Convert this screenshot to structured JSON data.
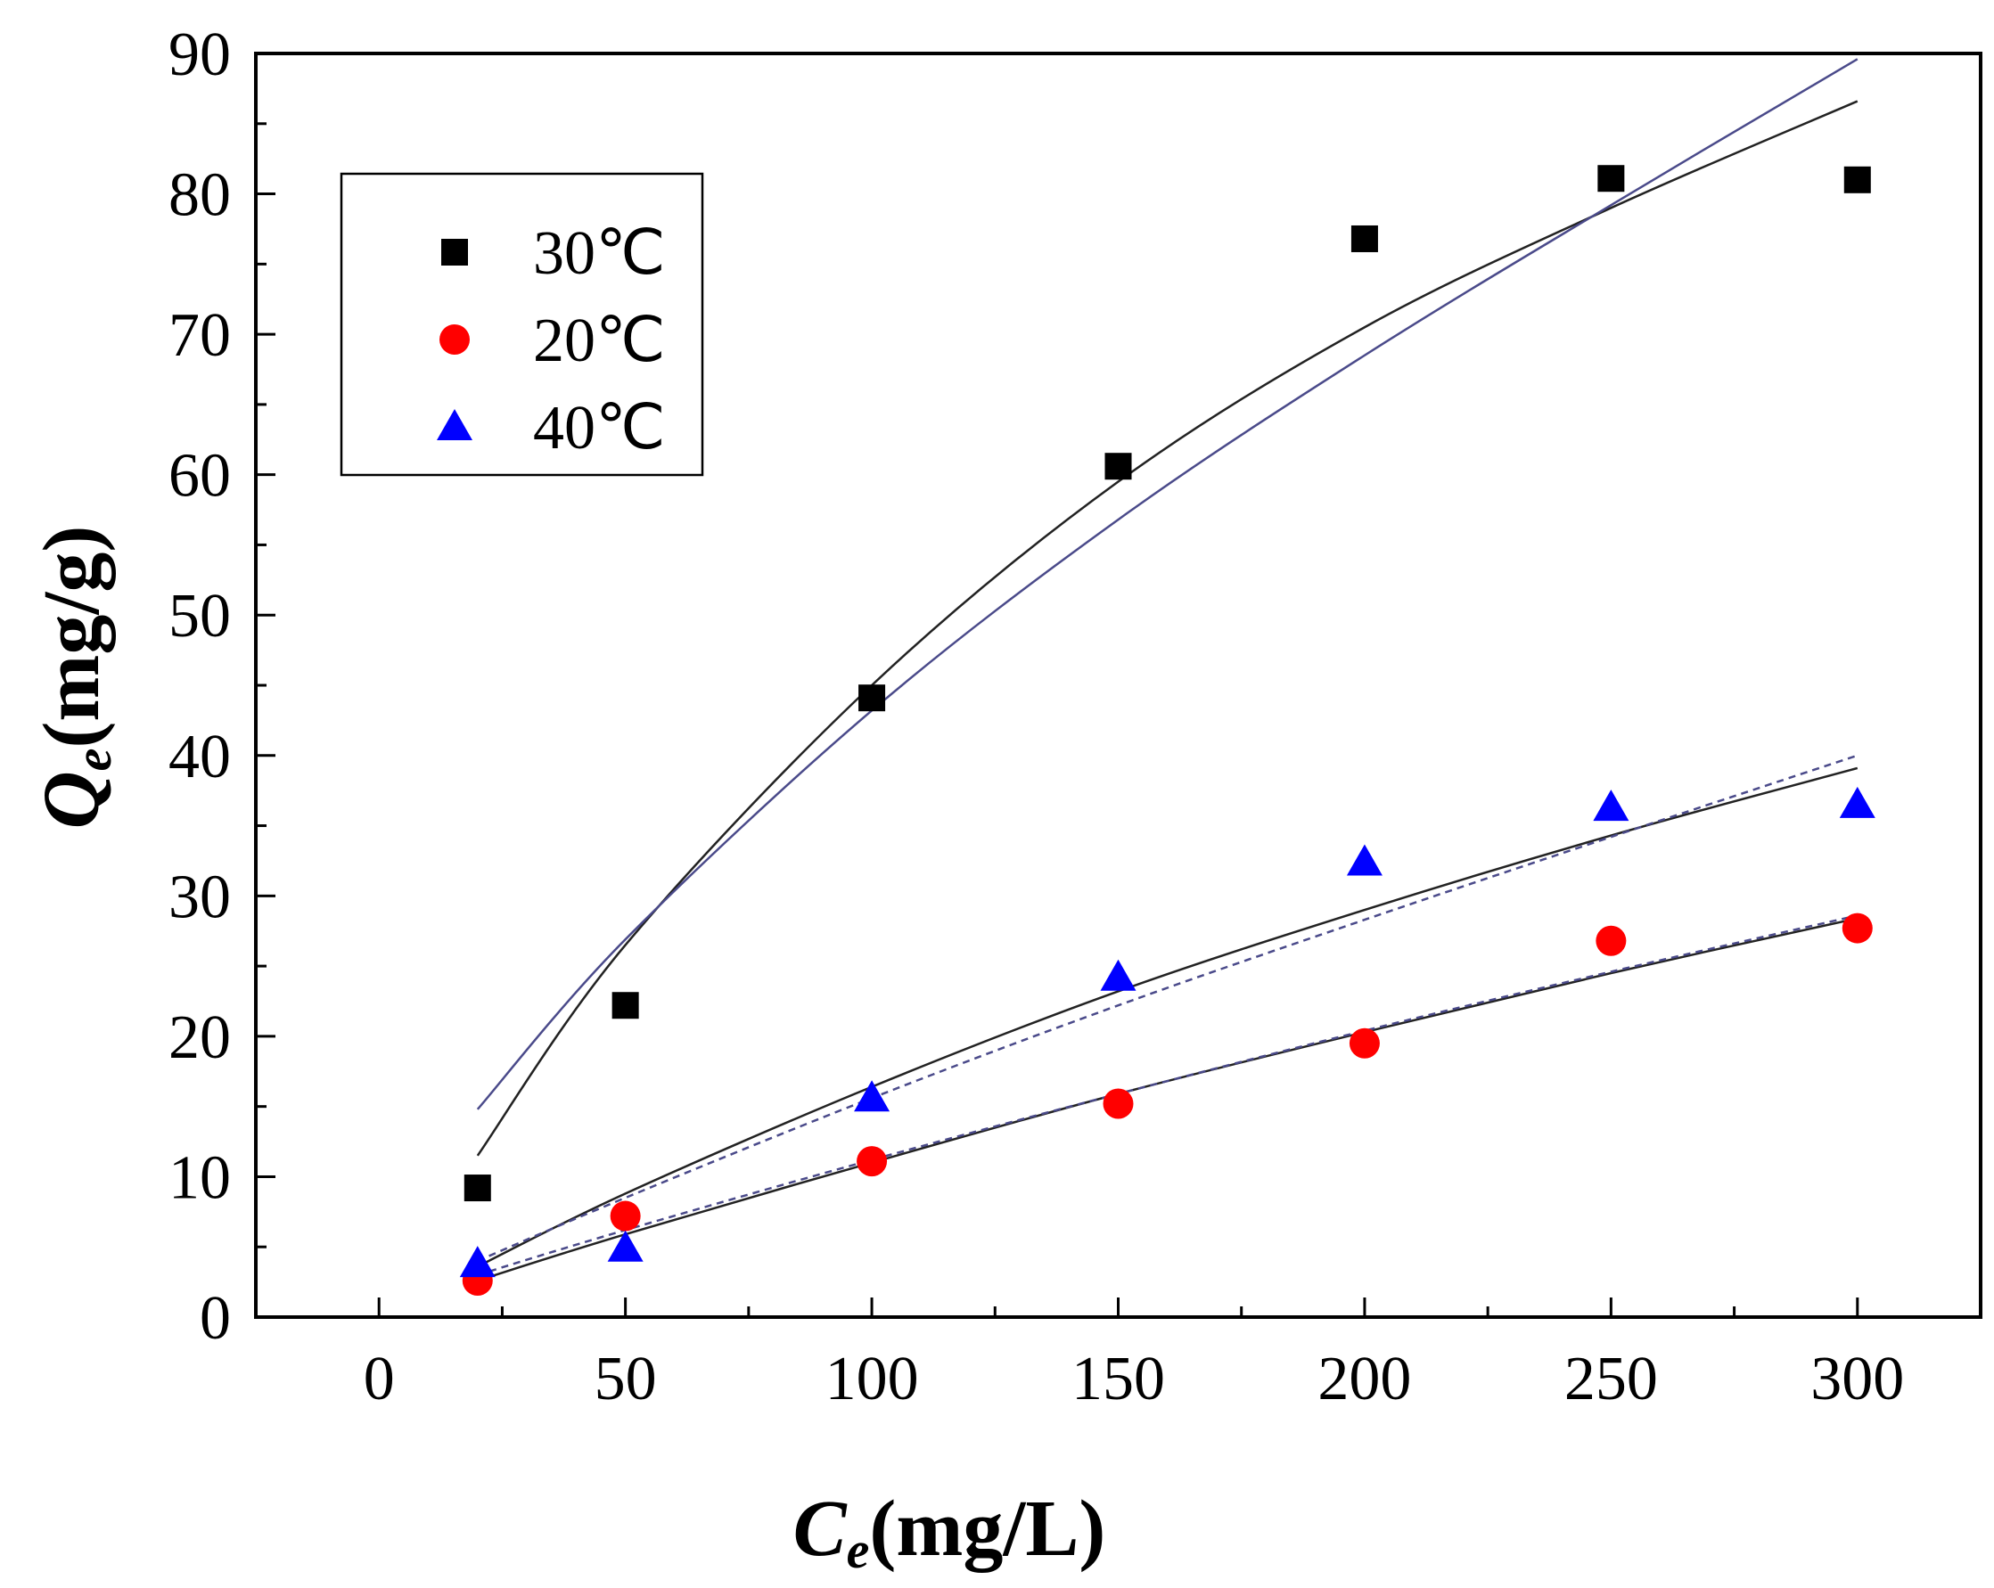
{
  "chart_data": {
    "type": "scatter",
    "title": "",
    "xlabel": {
      "main": "C",
      "sub": "e",
      "unit": "(mg/L)"
    },
    "ylabel": {
      "main": "Q",
      "sub": "e",
      "unit": "(mg/g)"
    },
    "xlim": [
      -25,
      325
    ],
    "ylim": [
      0,
      90
    ],
    "xticks": [
      0,
      50,
      100,
      150,
      200,
      250,
      300
    ],
    "yticks": [
      0,
      10,
      20,
      30,
      40,
      50,
      60,
      70,
      80,
      90
    ],
    "x_minor_ticks": [
      25,
      75,
      125,
      175,
      225,
      275
    ],
    "y_minor_ticks": [
      5,
      15,
      25,
      35,
      45,
      55,
      65,
      75,
      85
    ],
    "legend_position": "top-left",
    "series": [
      {
        "name": "30℃",
        "marker": "square",
        "color": "#000000",
        "x": [
          20,
          50,
          100,
          150,
          200,
          250,
          300
        ],
        "y": [
          9.2,
          22.2,
          44.1,
          60.6,
          76.8,
          81.1,
          81.0
        ]
      },
      {
        "name": "20℃",
        "marker": "circle",
        "color": "#ff0000",
        "x": [
          20,
          50,
          100,
          150,
          200,
          250,
          300
        ],
        "y": [
          2.6,
          7.2,
          11.1,
          15.2,
          19.5,
          26.8,
          27.7
        ]
      },
      {
        "name": "40℃",
        "marker": "triangle",
        "color": "#0000ff",
        "x": [
          20,
          50,
          100,
          150,
          200,
          250,
          300
        ],
        "y": [
          3.8,
          4.9,
          15.6,
          24.2,
          32.4,
          36.3,
          36.5
        ]
      }
    ],
    "fit_curves": [
      {
        "name": "30℃ fit 1",
        "color": "#222222",
        "dash": "none",
        "x": [
          20,
          50,
          100,
          150,
          200,
          250,
          300
        ],
        "y": [
          11.5,
          26.5,
          45.0,
          59.5,
          70.5,
          79.0,
          86.6
        ]
      },
      {
        "name": "30℃ fit 2",
        "color": "#4a4a8a",
        "dash": "none",
        "x": [
          20,
          50,
          100,
          150,
          200,
          250,
          300
        ],
        "y": [
          14.8,
          26.9,
          43.2,
          56.8,
          68.5,
          79.2,
          89.6
        ]
      },
      {
        "name": "40℃ fit 1",
        "color": "#222222",
        "dash": "none",
        "x": [
          20,
          50,
          100,
          150,
          200,
          250,
          300
        ],
        "y": [
          3.6,
          8.8,
          16.4,
          23.2,
          29.0,
          34.3,
          39.1
        ]
      },
      {
        "name": "40℃ fit 2",
        "color": "#4a4a8a",
        "dash": "dashed",
        "x": [
          20,
          50,
          100,
          150,
          200,
          250,
          300
        ],
        "y": [
          4.0,
          8.5,
          15.6,
          22.2,
          28.3,
          34.2,
          40.0
        ]
      },
      {
        "name": "20℃ fit 1",
        "color": "#222222",
        "dash": "none",
        "x": [
          20,
          50,
          100,
          150,
          200,
          250,
          300
        ],
        "y": [
          2.6,
          5.9,
          11.0,
          15.9,
          20.3,
          24.5,
          28.4
        ]
      },
      {
        "name": "20℃ fit 2",
        "color": "#4a4a8a",
        "dash": "dashed",
        "x": [
          20,
          50,
          100,
          150,
          200,
          250,
          300
        ],
        "y": [
          3.0,
          6.2,
          11.2,
          15.9,
          20.4,
          24.6,
          28.6
        ]
      }
    ]
  }
}
